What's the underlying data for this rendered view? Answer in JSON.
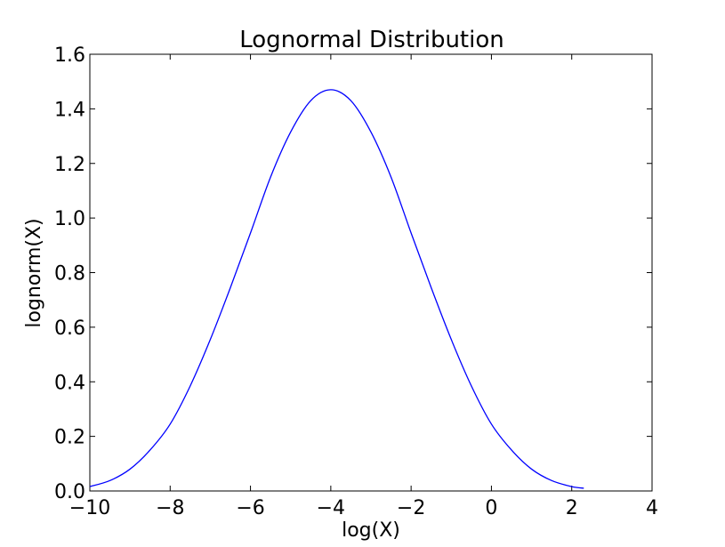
{
  "chart_data": {
    "type": "line",
    "title": "Lognormal Distribution",
    "xlabel": "log(X)",
    "ylabel": "lognorm(X)",
    "xlim": [
      -10,
      4
    ],
    "ylim": [
      0,
      1.6
    ],
    "xticks": [
      -10,
      -8,
      -6,
      -4,
      -2,
      0,
      2,
      4
    ],
    "xtick_labels": [
      "−10",
      "−8",
      "−6",
      "−4",
      "−2",
      "0",
      "2",
      "4"
    ],
    "yticks": [
      0.0,
      0.2,
      0.4,
      0.6,
      0.8,
      1.0,
      1.2,
      1.4,
      1.6
    ],
    "ytick_labels": [
      "0.0",
      "0.2",
      "0.4",
      "0.6",
      "0.8",
      "1.0",
      "1.2",
      "1.4",
      "1.6"
    ],
    "grid": false,
    "color": "#0000ff",
    "series": [
      {
        "x": [
          -10,
          -9.5,
          -9,
          -8.5,
          -8,
          -7.5,
          -7,
          -6.5,
          -6,
          -5.5,
          -5,
          -4.5,
          -4,
          -3.5,
          -3,
          -2.5,
          -2,
          -1.5,
          -1,
          -0.5,
          0,
          0.5,
          1,
          1.5,
          2,
          2.3
        ],
        "y": [
          0.016,
          0.038,
          0.08,
          0.15,
          0.245,
          0.385,
          0.555,
          0.745,
          0.945,
          1.15,
          1.315,
          1.43,
          1.47,
          1.43,
          1.315,
          1.15,
          0.945,
          0.745,
          0.555,
          0.385,
          0.245,
          0.15,
          0.08,
          0.038,
          0.016,
          0.01
        ]
      }
    ]
  }
}
